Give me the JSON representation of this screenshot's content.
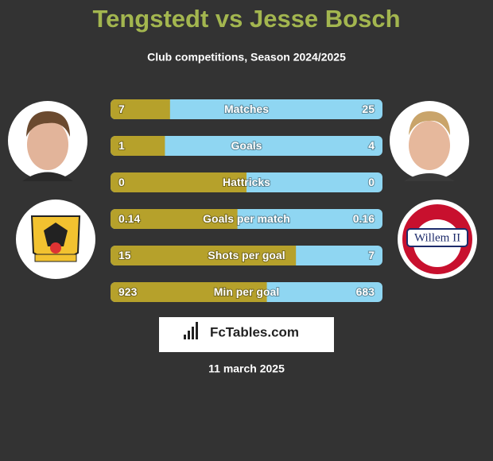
{
  "title": "Tengstedt vs Jesse Bosch",
  "subtitle": "Club competitions, Season 2024/2025",
  "rows": [
    {
      "label": "Matches",
      "left": 7,
      "right": 25
    },
    {
      "label": "Goals",
      "left": 1,
      "right": 4
    },
    {
      "label": "Hattricks",
      "left": 0,
      "right": 0
    },
    {
      "label": "Goals per match",
      "left": 0.14,
      "right": 0.16
    },
    {
      "label": "Shots per goal",
      "left": 15,
      "right": 7
    },
    {
      "label": "Min per goal",
      "left": 923,
      "right": 683
    }
  ],
  "brand": "FcTables.com",
  "date": "11 march 2025"
}
